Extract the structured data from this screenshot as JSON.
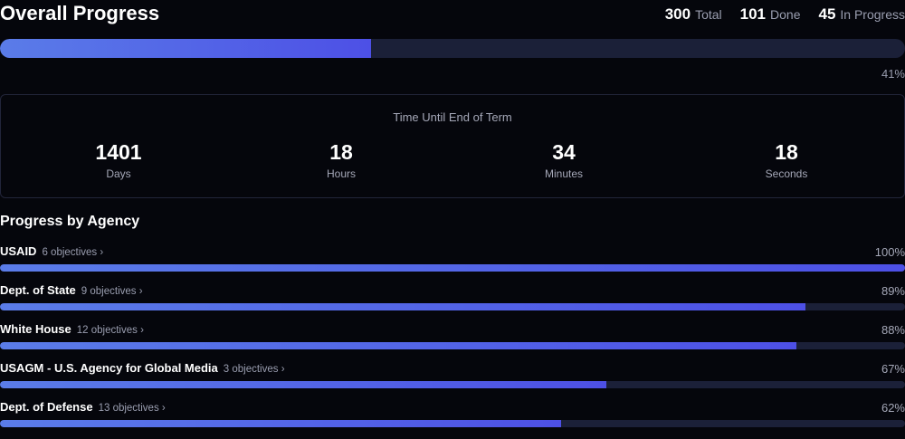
{
  "header": {
    "title": "Overall Progress",
    "stats": [
      {
        "value": "300",
        "label": "Total"
      },
      {
        "value": "101",
        "label": "Done"
      },
      {
        "value": "45",
        "label": "In Progress"
      }
    ]
  },
  "overall": {
    "percent": 41,
    "percent_label": "41%"
  },
  "timer": {
    "label": "Time Until End of Term",
    "units": [
      {
        "value": "1401",
        "label": "Days"
      },
      {
        "value": "18",
        "label": "Hours"
      },
      {
        "value": "34",
        "label": "Minutes"
      },
      {
        "value": "18",
        "label": "Seconds"
      }
    ]
  },
  "agencies_title": "Progress by Agency",
  "agencies": [
    {
      "name": "USAID",
      "objectives": "6 objectives",
      "chevron": "›",
      "percent": 100,
      "percent_label": "100%"
    },
    {
      "name": "Dept. of State",
      "objectives": "9 objectives",
      "chevron": "›",
      "percent": 89,
      "percent_label": "89%"
    },
    {
      "name": "White House",
      "objectives": "12 objectives",
      "chevron": "›",
      "percent": 88,
      "percent_label": "88%"
    },
    {
      "name": "USAGM - U.S. Agency for Global Media",
      "objectives": "3 objectives",
      "chevron": "›",
      "percent": 67,
      "percent_label": "67%"
    },
    {
      "name": "Dept. of Defense",
      "objectives": "13 objectives",
      "chevron": "›",
      "percent": 62,
      "percent_label": "62%"
    }
  ],
  "colors": {
    "background": "#05060c",
    "track": "#1b2038",
    "fill_start": "#5a7ce8",
    "fill_end": "#4d50e6"
  }
}
